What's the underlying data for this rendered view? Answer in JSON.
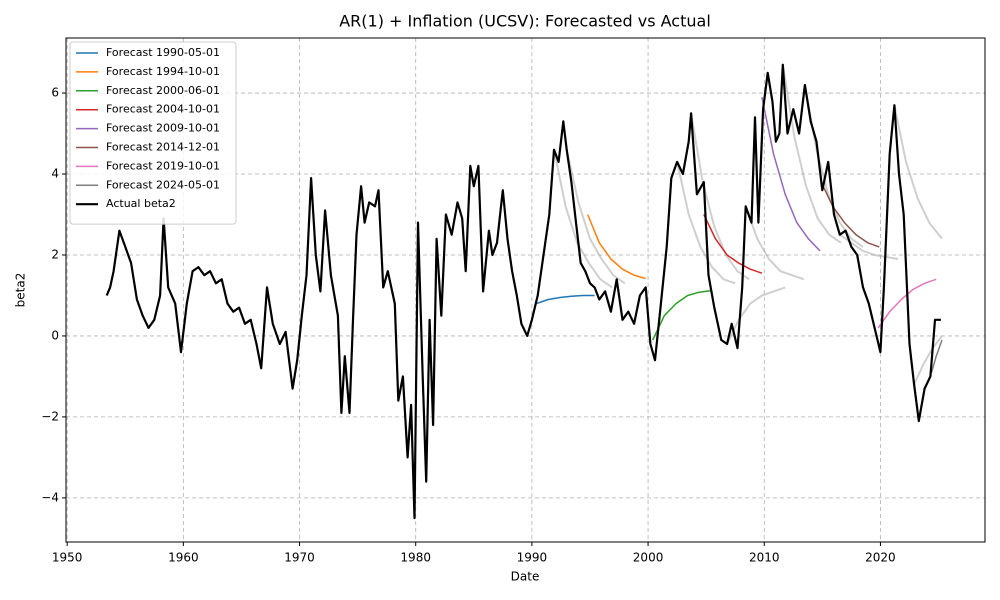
{
  "chart_data": {
    "type": "line",
    "title": "AR(1) + Inflation (UCSV): Forecasted vs Actual",
    "x_label": "Date",
    "y_label": "beta2",
    "xlim": [
      1949.9,
      2029.0
    ],
    "ylim": [
      -5.09,
      7.36
    ],
    "xticks": [
      1950,
      1960,
      1970,
      1980,
      1990,
      2000,
      2010,
      2020
    ],
    "yticks": [
      {
        "value": -4,
        "label": "−4"
      },
      {
        "value": -2,
        "label": "−2"
      },
      0,
      2,
      4,
      6
    ],
    "grid": true,
    "legend": "upper left",
    "fan_color": "#a8a8a8",
    "fan_lines": [
      {
        "x": [
          1991.9,
          1992.9,
          1993.9,
          1994.9,
          1995.9,
          1996.9
        ],
        "values": [
          4.6,
          3.2,
          2.3,
          1.8,
          1.4,
          1.2
        ]
      },
      {
        "x": [
          1993.0,
          1994.0,
          1995.0,
          1996.0,
          1997.0,
          1998.0
        ],
        "values": [
          4.6,
          3.3,
          2.4,
          1.9,
          1.5,
          1.3
        ]
      },
      {
        "x": [
          2002.5,
          2003.5,
          2004.5,
          2005.5,
          2006.5,
          2007.5
        ],
        "values": [
          4.3,
          3.0,
          2.2,
          1.7,
          1.4,
          1.3
        ]
      },
      {
        "x": [
          2003.7,
          2004.7,
          2005.7,
          2006.7,
          2007.7,
          2008.7
        ],
        "values": [
          5.5,
          3.8,
          2.7,
          2.0,
          1.6,
          1.4
        ]
      },
      {
        "x": [
          2006.8,
          2007.8,
          2008.8,
          2009.8,
          2010.8,
          2011.8
        ],
        "values": [
          -0.2,
          0.4,
          0.8,
          1.0,
          1.1,
          1.2
        ]
      },
      {
        "x": [
          2008.4,
          2009.4,
          2010.4,
          2011.4,
          2012.4,
          2013.4
        ],
        "values": [
          3.2,
          2.4,
          1.9,
          1.6,
          1.5,
          1.4
        ]
      },
      {
        "x": [
          2011.6,
          2012.6,
          2013.6,
          2014.6,
          2015.6,
          2016.6
        ],
        "values": [
          6.7,
          4.9,
          3.7,
          2.9,
          2.5,
          2.3
        ]
      },
      {
        "x": [
          2013.5,
          2014.5,
          2015.5,
          2016.5,
          2017.5,
          2018.5
        ],
        "values": [
          6.2,
          4.6,
          3.5,
          2.8,
          2.4,
          2.2
        ]
      },
      {
        "x": [
          2016.5,
          2017.5,
          2018.5,
          2019.5,
          2020.5,
          2021.5
        ],
        "values": [
          2.5,
          2.3,
          2.1,
          2.0,
          1.95,
          1.9
        ]
      },
      {
        "x": [
          2021.2,
          2022.2,
          2023.2,
          2024.2,
          2025.3
        ],
        "values": [
          5.7,
          4.3,
          3.4,
          2.8,
          2.4
        ]
      },
      {
        "x": [
          2022.9,
          2023.7,
          2024.5,
          2025.3
        ],
        "values": [
          -1.2,
          -0.7,
          -0.3,
          0.0
        ]
      }
    ],
    "series": [
      {
        "name": "Forecast 1990-05-01",
        "color": "#1f77b4",
        "x": [
          1990.4,
          1991.4,
          1992.4,
          1993.4,
          1994.4,
          1995.4
        ],
        "values": [
          0.8,
          0.9,
          0.95,
          0.98,
          1.0,
          1.0
        ]
      },
      {
        "name": "Forecast 1994-10-01",
        "color": "#ff7f0e",
        "x": [
          1994.8,
          1995.8,
          1996.8,
          1997.8,
          1998.8,
          1999.8
        ],
        "values": [
          3.0,
          2.3,
          1.9,
          1.65,
          1.5,
          1.42
        ]
      },
      {
        "name": "Forecast 2000-06-01",
        "color": "#2ca02c",
        "x": [
          2000.4,
          2001.4,
          2002.4,
          2003.4,
          2004.4,
          2005.4
        ],
        "values": [
          -0.1,
          0.5,
          0.8,
          1.0,
          1.08,
          1.12
        ]
      },
      {
        "name": "Forecast 2004-10-01",
        "color": "#d62728",
        "x": [
          2004.8,
          2005.8,
          2006.8,
          2007.8,
          2008.8,
          2009.8
        ],
        "values": [
          3.0,
          2.4,
          2.0,
          1.8,
          1.65,
          1.55
        ]
      },
      {
        "name": "Forecast 2009-10-01",
        "color": "#9467bd",
        "x": [
          2009.8,
          2010.8,
          2011.8,
          2012.8,
          2013.8,
          2014.8
        ],
        "values": [
          5.9,
          4.5,
          3.5,
          2.8,
          2.4,
          2.1
        ]
      },
      {
        "name": "Forecast 2014-12-01",
        "color": "#8c564b",
        "x": [
          2014.9,
          2015.9,
          2016.9,
          2017.9,
          2018.9,
          2019.9
        ],
        "values": [
          3.8,
          3.2,
          2.8,
          2.5,
          2.3,
          2.2
        ]
      },
      {
        "name": "Forecast 2019-10-01",
        "color": "#e377c2",
        "x": [
          2019.8,
          2020.8,
          2021.8,
          2022.8,
          2023.8,
          2024.8
        ],
        "values": [
          0.2,
          0.6,
          0.9,
          1.15,
          1.3,
          1.4
        ]
      },
      {
        "name": "Forecast 2024-05-01",
        "color": "#7f7f7f",
        "x": [
          2024.4,
          2024.8,
          2025.3
        ],
        "values": [
          -0.9,
          -0.5,
          -0.1
        ]
      },
      {
        "name": "Actual beta2",
        "color": "#000000",
        "x": [
          1953.4,
          1953.7,
          1954.0,
          1954.5,
          1955.0,
          1955.5,
          1956.0,
          1956.5,
          1957.0,
          1957.5,
          1958.0,
          1958.3,
          1958.7,
          1959.3,
          1959.8,
          1960.3,
          1960.8,
          1961.3,
          1961.8,
          1962.3,
          1962.8,
          1963.3,
          1963.8,
          1964.3,
          1964.8,
          1965.3,
          1965.8,
          1966.3,
          1966.7,
          1967.2,
          1967.7,
          1968.3,
          1968.8,
          1969.4,
          1969.8,
          1970.2,
          1970.6,
          1971.0,
          1971.4,
          1971.8,
          1972.2,
          1972.7,
          1973.3,
          1973.6,
          1973.9,
          1974.3,
          1974.6,
          1974.9,
          1975.3,
          1975.6,
          1976.0,
          1976.5,
          1976.8,
          1977.2,
          1977.6,
          1978.2,
          1978.5,
          1978.9,
          1979.3,
          1979.6,
          1979.9,
          1980.2,
          1980.6,
          1980.9,
          1981.2,
          1981.5,
          1981.8,
          1982.2,
          1982.6,
          1983.1,
          1983.6,
          1984.0,
          1984.3,
          1984.7,
          1985.0,
          1985.4,
          1985.8,
          1986.3,
          1986.6,
          1987.0,
          1987.5,
          1987.9,
          1988.3,
          1988.7,
          1989.1,
          1989.6,
          1990.0,
          1990.5,
          1991.0,
          1991.5,
          1991.9,
          1992.3,
          1992.7,
          1993.0,
          1993.4,
          1993.8,
          1994.2,
          1994.6,
          1995.0,
          1995.4,
          1995.8,
          1996.3,
          1996.8,
          1997.3,
          1997.8,
          1998.3,
          1998.8,
          1999.3,
          1999.8,
          2000.2,
          2000.6,
          2001.1,
          2001.6,
          2002.0,
          2002.5,
          2003.0,
          2003.5,
          2003.7,
          2004.2,
          2004.8,
          2005.2,
          2005.7,
          2006.3,
          2006.8,
          2007.2,
          2007.7,
          2008.1,
          2008.4,
          2008.9,
          2009.2,
          2009.5,
          2009.9,
          2010.3,
          2010.7,
          2011.0,
          2011.3,
          2011.6,
          2012.0,
          2012.5,
          2013.0,
          2013.5,
          2014.0,
          2014.5,
          2015.0,
          2015.5,
          2016.0,
          2016.5,
          2017.0,
          2017.5,
          2018.0,
          2018.5,
          2019.0,
          2019.5,
          2020.0,
          2020.3,
          2020.8,
          2021.2,
          2021.6,
          2022.0,
          2022.5,
          2022.9,
          2023.3,
          2023.8,
          2024.3,
          2024.7,
          2025.2
        ],
        "values": [
          1.0,
          1.2,
          1.6,
          2.6,
          2.2,
          1.8,
          0.9,
          0.5,
          0.2,
          0.4,
          1.0,
          2.9,
          1.2,
          0.8,
          -0.4,
          0.8,
          1.6,
          1.7,
          1.5,
          1.6,
          1.3,
          1.4,
          0.8,
          0.6,
          0.7,
          0.3,
          0.4,
          -0.2,
          -0.8,
          1.2,
          0.3,
          -0.2,
          0.1,
          -1.3,
          -0.6,
          0.5,
          1.5,
          3.9,
          2.0,
          1.1,
          3.1,
          1.5,
          0.5,
          -1.9,
          -0.5,
          -1.9,
          0.4,
          2.5,
          3.7,
          2.8,
          3.3,
          3.2,
          3.6,
          1.2,
          1.6,
          0.8,
          -1.6,
          -1.0,
          -3.0,
          -1.7,
          -4.5,
          2.8,
          -1.0,
          -3.6,
          0.4,
          -2.2,
          2.4,
          0.5,
          3.0,
          2.5,
          3.3,
          2.9,
          1.6,
          4.2,
          3.7,
          4.2,
          1.1,
          2.6,
          2.0,
          2.3,
          3.6,
          2.4,
          1.6,
          1.0,
          0.3,
          0.0,
          0.4,
          1.0,
          2.0,
          3.0,
          4.6,
          4.3,
          5.3,
          4.6,
          3.8,
          2.8,
          1.8,
          1.6,
          1.3,
          1.2,
          0.9,
          1.1,
          0.6,
          1.4,
          0.4,
          0.6,
          0.3,
          1.0,
          1.2,
          -0.2,
          -0.6,
          0.8,
          2.2,
          3.9,
          4.3,
          4.0,
          4.8,
          5.5,
          3.5,
          3.8,
          1.5,
          0.7,
          -0.1,
          -0.2,
          0.3,
          -0.3,
          1.2,
          3.2,
          2.8,
          5.4,
          2.8,
          5.6,
          6.5,
          5.8,
          4.8,
          5.0,
          6.7,
          5.0,
          5.6,
          5.0,
          6.2,
          5.3,
          4.8,
          3.6,
          4.3,
          3.0,
          2.5,
          2.6,
          2.2,
          2.0,
          1.2,
          0.8,
          0.2,
          -0.4,
          1.2,
          4.5,
          5.7,
          4.0,
          3.0,
          -0.2,
          -1.2,
          -2.1,
          -1.3,
          -1.0,
          0.4,
          0.4
        ]
      }
    ]
  }
}
